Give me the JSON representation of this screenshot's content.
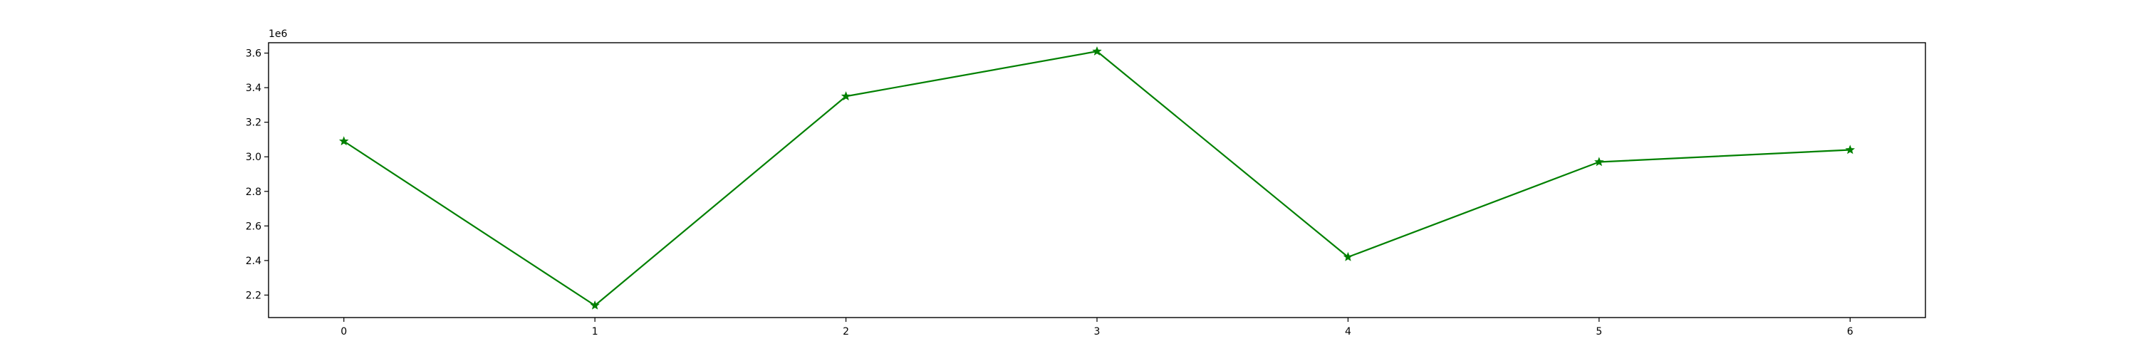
{
  "chart_data": {
    "type": "line",
    "title": "",
    "xlabel": "",
    "ylabel": "",
    "y_offset_label": "1e6",
    "x": [
      0,
      1,
      2,
      3,
      4,
      5,
      6
    ],
    "x_ticks": [
      0,
      1,
      2,
      3,
      4,
      5,
      6
    ],
    "y_ticks": [
      2.2,
      2.4,
      2.6,
      2.8,
      3.0,
      3.2,
      3.4,
      3.6
    ],
    "y_scale_multiplier": 1000000,
    "xlim": [
      -0.3,
      6.3
    ],
    "ylim": [
      2.07,
      3.66
    ],
    "series": [
      {
        "values": [
          3.09,
          2.14,
          3.35,
          3.61,
          2.42,
          2.97,
          3.04
        ],
        "color": "#008000",
        "marker": "star"
      }
    ],
    "grid": false,
    "legend": false
  }
}
